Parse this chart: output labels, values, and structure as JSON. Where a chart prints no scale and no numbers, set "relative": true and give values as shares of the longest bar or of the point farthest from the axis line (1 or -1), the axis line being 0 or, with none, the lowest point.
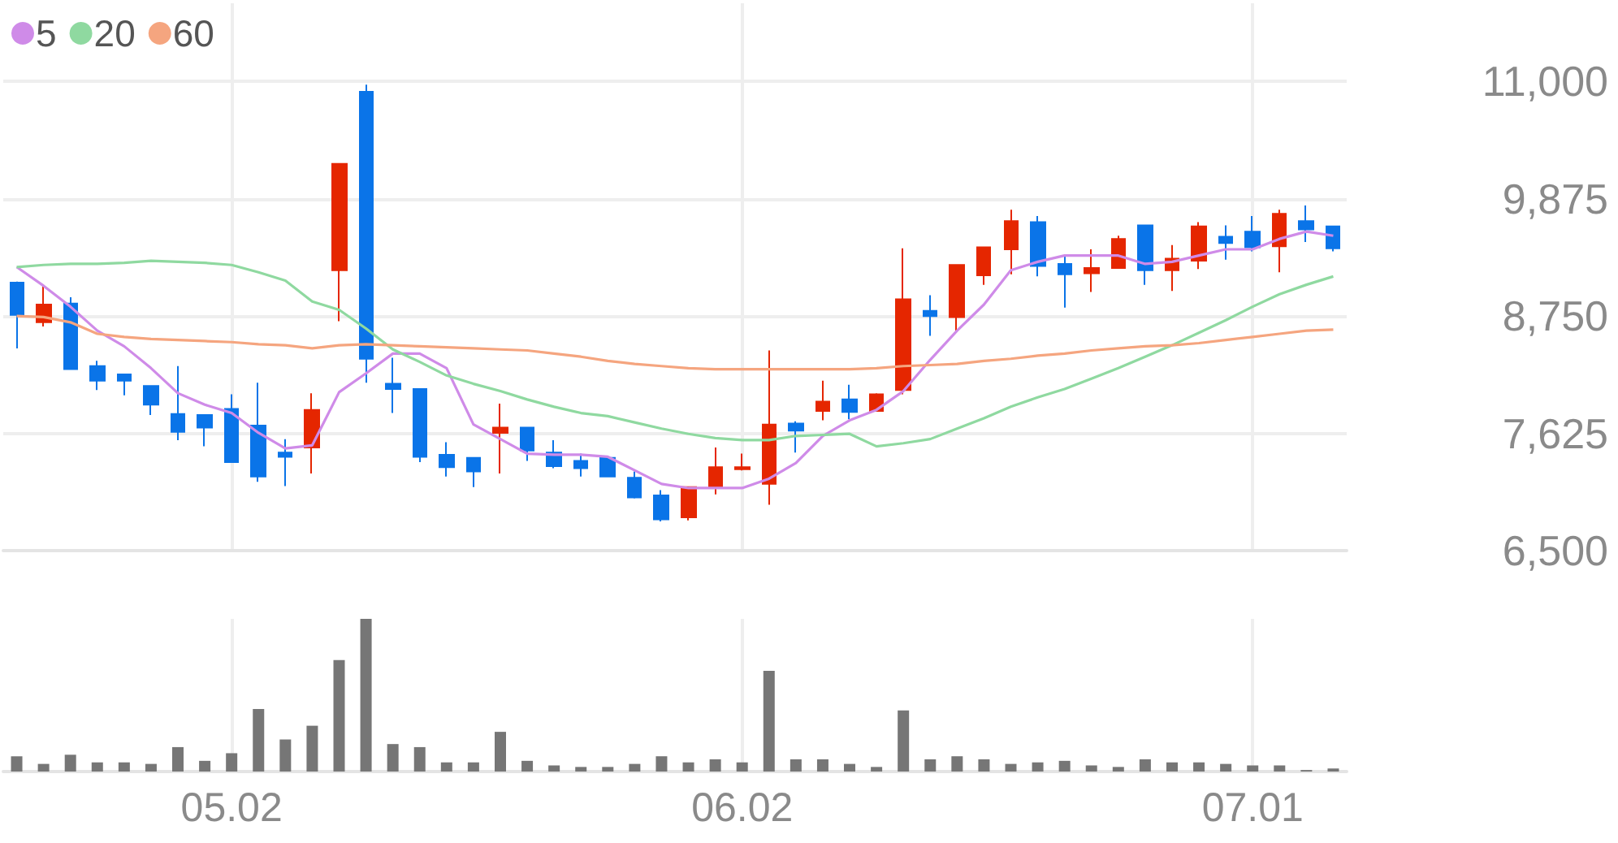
{
  "chart_data": [
    {
      "type": "candlestick",
      "categories": [
        null,
        null,
        null,
        null,
        null,
        null,
        null,
        null,
        "05.02",
        null,
        null,
        null,
        null,
        null,
        null,
        null,
        null,
        null,
        null,
        null,
        null,
        null,
        null,
        null,
        null,
        null,
        null,
        "06.02",
        null,
        null,
        null,
        null,
        null,
        null,
        null,
        null,
        null,
        null,
        null,
        null,
        null,
        null,
        null,
        null,
        null,
        null,
        "07.01",
        null,
        null,
        null
      ],
      "tick_labels": "y",
      "ylim": [
        6500,
        11750
      ],
      "yticks": [
        {
          "value": 6500,
          "label": "6,500"
        },
        {
          "value": 7625,
          "label": "7,625"
        },
        {
          "value": 8750,
          "label": "8,750"
        },
        {
          "value": 9875,
          "label": "9,875"
        },
        {
          "value": 11000,
          "label": "11,000"
        }
      ],
      "grid": true,
      "legend": "top left",
      "marker": "none",
      "series": [
        {
          "type": "candlestick",
          "ohlc": [
            [
              9070,
              9080,
              8440,
              8760
            ],
            [
              8690,
              9040,
              8650,
              8860
            ],
            [
              8870,
              8930,
              8240,
              8240
            ],
            [
              8270,
              8320,
              8040,
              8130
            ],
            [
              8190,
              8190,
              7990,
              8130
            ],
            [
              8080,
              8080,
              7800,
              7900
            ],
            [
              7810,
              8270,
              7560,
              7640
            ],
            [
              7800,
              7800,
              7500,
              7680
            ],
            [
              7860,
              8000,
              7350,
              7350
            ],
            [
              7700,
              8110,
              7160,
              7210
            ],
            [
              7440,
              7570,
              7120,
              7400
            ],
            [
              7490,
              8010,
              7240,
              7850
            ],
            [
              9190,
              10210,
              8700,
              10210
            ],
            [
              10900,
              10970,
              8110,
              8340
            ],
            [
              8100,
              8350,
              7820,
              8050
            ],
            [
              8050,
              8050,
              7350,
              7400
            ],
            [
              7420,
              7540,
              7210,
              7300
            ],
            [
              7390,
              7390,
              7110,
              7260
            ],
            [
              7630,
              7910,
              7240,
              7680
            ],
            [
              7680,
              7680,
              7360,
              7460
            ],
            [
              7440,
              7560,
              7290,
              7310
            ],
            [
              7360,
              7430,
              7210,
              7290
            ],
            [
              7390,
              7390,
              7210,
              7210
            ],
            [
              7200,
              7260,
              7000,
              7010
            ],
            [
              7030,
              7080,
              6780,
              6800
            ],
            [
              6820,
              7110,
              6790,
              7110
            ],
            [
              7100,
              7490,
              7040,
              7300
            ],
            [
              7280,
              7430,
              7270,
              7300
            ],
            [
              7140,
              8420,
              6940,
              7710
            ],
            [
              7720,
              7740,
              7440,
              7650
            ],
            [
              7840,
              8130,
              7750,
              7930
            ],
            [
              7950,
              8090,
              7760,
              7830
            ],
            [
              7840,
              8010,
              7840,
              8000
            ],
            [
              8040,
              9400,
              8000,
              8910
            ],
            [
              8800,
              8950,
              8560,
              8750
            ],
            [
              8740,
              9240,
              8610,
              9240
            ],
            [
              9140,
              9410,
              9050,
              9410
            ],
            [
              9390,
              9770,
              9150,
              9660
            ],
            [
              9650,
              9710,
              9130,
              9230
            ],
            [
              9250,
              9320,
              8830,
              9150
            ],
            [
              9160,
              9390,
              8980,
              9210
            ],
            [
              9210,
              9520,
              9210,
              9490
            ],
            [
              9620,
              9620,
              9050,
              9190
            ],
            [
              9190,
              9430,
              8990,
              9300
            ],
            [
              9280,
              9650,
              9200,
              9610
            ],
            [
              9510,
              9620,
              9290,
              9450
            ],
            [
              9560,
              9710,
              9370,
              9410
            ],
            [
              9420,
              9770,
              9170,
              9730
            ],
            [
              9660,
              9810,
              9460,
              9580
            ],
            [
              9610,
              9610,
              9370,
              9400
            ]
          ],
          "colors": [
            "#0a74e8",
            "#e52600",
            "#0a74e8",
            "#0a74e8",
            "#0a74e8",
            "#0a74e8",
            "#0a74e8",
            "#0a74e8",
            "#0a74e8",
            "#0a74e8",
            "#0a74e8",
            "#e52600",
            "#e52600",
            "#0a74e8",
            "#0a74e8",
            "#0a74e8",
            "#0a74e8",
            "#0a74e8",
            "#e52600",
            "#0a74e8",
            "#0a74e8",
            "#0a74e8",
            "#0a74e8",
            "#0a74e8",
            "#0a74e8",
            "#e52600",
            "#e52600",
            "#e52600",
            "#e52600",
            "#0a74e8",
            "#e52600",
            "#0a74e8",
            "#e52600",
            "#e52600",
            "#0a74e8",
            "#e52600",
            "#e52600",
            "#e52600",
            "#0a74e8",
            "#0a74e8",
            "#e52600",
            "#e52600",
            "#0a74e8",
            "#e52600",
            "#e52600",
            "#0a74e8",
            "#0a74e8",
            "#e52600",
            "#0a74e8",
            "#0a74e8"
          ]
        },
        {
          "type": "line",
          "name": "5",
          "color": "#cf8be8",
          "values": [
            9220,
            9040,
            8840,
            8610,
            8460,
            8250,
            8010,
            7900,
            7820,
            7630,
            7480,
            7510,
            8020,
            8200,
            8390,
            8390,
            8250,
            7710,
            7570,
            7430,
            7420,
            7420,
            7400,
            7270,
            7140,
            7100,
            7100,
            7100,
            7190,
            7340,
            7600,
            7750,
            7850,
            8030,
            8330,
            8610,
            8860,
            9190,
            9270,
            9330,
            9330,
            9330,
            9250,
            9270,
            9330,
            9390,
            9390,
            9490,
            9560,
            9520
          ]
        },
        {
          "type": "line",
          "name": "20",
          "color": "#8fd9a0",
          "values": [
            9220,
            9240,
            9250,
            9250,
            9260,
            9280,
            9270,
            9260,
            9240,
            9170,
            9090,
            8890,
            8810,
            8630,
            8430,
            8310,
            8180,
            8100,
            8030,
            7950,
            7880,
            7820,
            7790,
            7730,
            7670,
            7620,
            7580,
            7560,
            7560,
            7600,
            7610,
            7620,
            7500,
            7530,
            7570,
            7670,
            7770,
            7880,
            7970,
            8050,
            8150,
            8250,
            8360,
            8470,
            8590,
            8710,
            8840,
            8960,
            9050,
            9130
          ]
        },
        {
          "type": "line",
          "name": "60",
          "color": "#f5a57f",
          "values": [
            8750,
            8740,
            8690,
            8580,
            8550,
            8530,
            8520,
            8510,
            8500,
            8480,
            8470,
            8440,
            8470,
            8480,
            8470,
            8460,
            8450,
            8440,
            8430,
            8420,
            8390,
            8360,
            8320,
            8290,
            8270,
            8250,
            8240,
            8240,
            8240,
            8240,
            8240,
            8240,
            8250,
            8270,
            8280,
            8290,
            8320,
            8340,
            8370,
            8390,
            8420,
            8440,
            8460,
            8470,
            8490,
            8520,
            8550,
            8580,
            8610,
            8620
          ]
        }
      ]
    },
    {
      "type": "bar",
      "relative": true,
      "tick_labels": "x",
      "grid": "x",
      "color": "#767676",
      "categories": [
        null,
        null,
        null,
        null,
        null,
        null,
        null,
        null,
        "05.02",
        null,
        null,
        null,
        null,
        null,
        null,
        null,
        null,
        null,
        null,
        null,
        null,
        null,
        null,
        null,
        null,
        null,
        null,
        "06.02",
        null,
        null,
        null,
        null,
        null,
        null,
        null,
        null,
        null,
        null,
        null,
        null,
        null,
        null,
        null,
        null,
        null,
        null,
        "07.01",
        null,
        null,
        null
      ],
      "values": [
        0.1,
        0.05,
        0.11,
        0.06,
        0.06,
        0.05,
        0.16,
        0.07,
        0.12,
        0.41,
        0.21,
        0.3,
        0.73,
        1,
        0.18,
        0.16,
        0.06,
        0.06,
        0.26,
        0.07,
        0.04,
        0.03,
        0.03,
        0.05,
        0.1,
        0.06,
        0.08,
        0.06,
        0.66,
        0.08,
        0.08,
        0.05,
        0.03,
        0.4,
        0.08,
        0.1,
        0.08,
        0.05,
        0.06,
        0.07,
        0.04,
        0.03,
        0.08,
        0.06,
        0.06,
        0.05,
        0.04,
        0.04,
        0.01,
        0.02
      ]
    }
  ]
}
